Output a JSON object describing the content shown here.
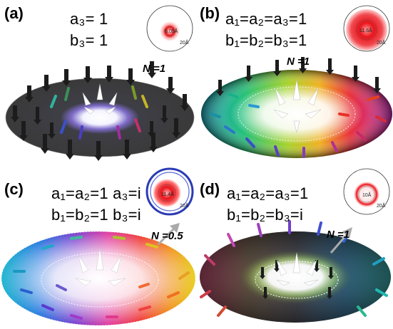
{
  "panels": [
    {
      "id": "a",
      "label": "(a)",
      "line1": "a₃= 1",
      "line2": "b₃= 1",
      "n_label": "N =1",
      "inset_value": "6.05Å",
      "inset_scale": "20Å"
    },
    {
      "id": "b",
      "label": "(b)",
      "line1": "a₁=a₂=a₃=1",
      "line2": "b₁=b₂=b₃=1",
      "n_label": "N =1",
      "inset_value": "11.6Å",
      "inset_scale": "20Å"
    },
    {
      "id": "c",
      "label": "(c)",
      "line1": "a₁=a₂=1   a₃=i",
      "line2": "b₁=b₂=1   b₃=i",
      "n_label": "N =0.5",
      "inset_value": "11.4Å",
      "inset_scale": "20Å"
    },
    {
      "id": "d",
      "label": "(d)",
      "line1": "a₁=a₂=a₃=1",
      "line2": "b₁=b₂=b₃=i",
      "n_label": "N =1",
      "inset_value": "10Å",
      "inset_scale": "20Å"
    }
  ],
  "colors": {
    "arrow_dark": "#1a1a1a",
    "inset_red": "#e8141c",
    "inset_blue": "#2a3bb5"
  }
}
